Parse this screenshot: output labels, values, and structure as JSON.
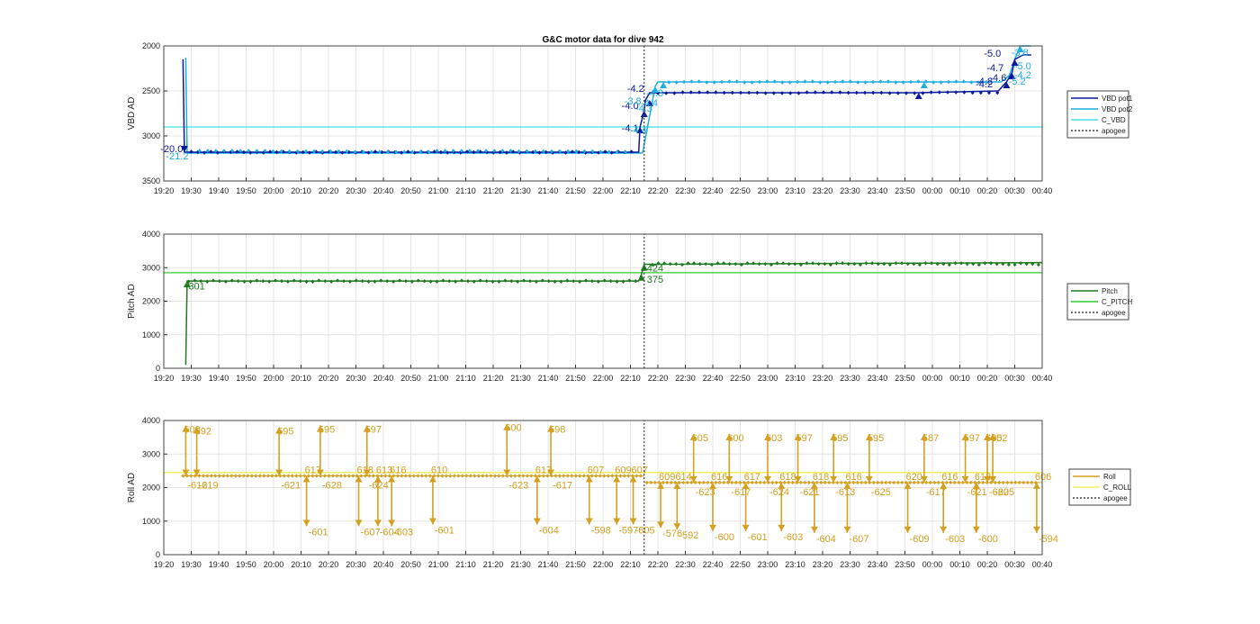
{
  "title": "G&C motor data for dive 942",
  "time_ticks": [
    "19:20",
    "19:30",
    "19:40",
    "19:50",
    "20:00",
    "20:10",
    "20:20",
    "20:30",
    "20:40",
    "20:50",
    "21:00",
    "21:10",
    "21:20",
    "21:30",
    "21:40",
    "21:50",
    "22:00",
    "22:10",
    "22:20",
    "22:30",
    "22:40",
    "22:50",
    "23:00",
    "23:10",
    "23:20",
    "23:30",
    "23:40",
    "23:50",
    "00:00",
    "00:10",
    "00:20",
    "00:30",
    "00:40"
  ],
  "colors": {
    "vbd_pot1": "#0a1a9a",
    "vbd_pot2": "#1faee0",
    "c_vbd": "#40e0e8",
    "pitch": "#1e7a1e",
    "c_pitch": "#33cc33",
    "roll": "#d4a020",
    "c_roll": "#f0f060",
    "apogee": "#444444",
    "grid": "#e4e4e4"
  },
  "chart_data": [
    {
      "type": "line",
      "id": "vbd",
      "title": "G&C motor data for dive 942",
      "ylabel": "VBD AD",
      "ylim": [
        3500,
        2000
      ],
      "y_reversed": true,
      "yticks": [
        2000,
        2500,
        3000,
        3500
      ],
      "xlim": [
        "19:20",
        "00:40"
      ],
      "grid": true,
      "legend_placement": "outside-right",
      "series": [
        {
          "name": "VBD pot1",
          "style": "line",
          "x": [
            "19:27",
            "19:27.5",
            "19:28",
            "22:13",
            "22:13.5",
            "22:15",
            "22:15.5",
            "22:17",
            "22:18",
            "23:55",
            "00:24",
            "00:27",
            "00:29",
            "00:30",
            "00:33",
            "00:36"
          ],
          "values": [
            2150,
            3180,
            3180,
            3180,
            2900,
            2720,
            2600,
            2520,
            2520,
            2520,
            2500,
            2400,
            2300,
            2150,
            2100,
            2100
          ]
        },
        {
          "name": "VBD pot2",
          "style": "line",
          "x": [
            "19:28",
            "19:28.5",
            "19:29",
            "22:14",
            "22:14.5",
            "22:19",
            "22:20",
            "22:22",
            "23:57",
            "00:25",
            "00:28",
            "00:30",
            "00:32",
            "00:36"
          ],
          "values": [
            2130,
            3190,
            3190,
            3190,
            3180,
            2450,
            2400,
            2400,
            2400,
            2400,
            2330,
            2150,
            2000,
            2000
          ]
        },
        {
          "name": "C_VBD",
          "style": "line",
          "x": [
            "19:20",
            "00:40"
          ],
          "values": [
            2900,
            2900
          ]
        },
        {
          "name": "apogee",
          "style": "dotted",
          "x": [
            "22:15",
            "22:15"
          ],
          "values": [
            2000,
            3500
          ]
        }
      ],
      "annotations": [
        {
          "text": "-20.0",
          "x": "19:27",
          "y": 3180,
          "series": "VBD pot1"
        },
        {
          "text": "-21.2",
          "x": "19:29",
          "y": 3260,
          "series": "VBD pot2"
        },
        {
          "text": "-4.1",
          "x": "22:13",
          "y": 2950,
          "series": "VBD pot1"
        },
        {
          "text": "-4.4",
          "x": "22:16",
          "y": 2970,
          "series": "VBD pot2"
        },
        {
          "text": "-4.0",
          "x": "22:13",
          "y": 2700,
          "series": "VBD pot1"
        },
        {
          "text": "-3.8",
          "x": "22:14",
          "y": 2650,
          "series": "VBD pot2"
        },
        {
          "text": "-4.2",
          "x": "22:15",
          "y": 2510,
          "series": "VBD pot1"
        },
        {
          "text": "-4.3",
          "x": "22:18",
          "y": 2730,
          "series": "VBD pot2"
        },
        {
          "text": "-4.4",
          "x": "22:20",
          "y": 2670,
          "series": "VBD pot2"
        },
        {
          "text": "-4.3",
          "x": "22:22",
          "y": 2560,
          "series": "VBD pot2"
        },
        {
          "text": "-5.0",
          "x": "00:25",
          "y": 2120,
          "series": "VBD pot1"
        },
        {
          "text": "-4.7",
          "x": "00:26",
          "y": 2280,
          "series": "VBD pot1"
        },
        {
          "text": "-4.6",
          "x": "00:27",
          "y": 2390,
          "series": "VBD pot1"
        },
        {
          "text": "-4.8",
          "x": "00:22",
          "y": 2430,
          "series": "VBD pot1"
        },
        {
          "text": "-4.2",
          "x": "00:22",
          "y": 2460,
          "series": "VBD pot1"
        },
        {
          "text": "-3.8",
          "x": "00:35",
          "y": 2110,
          "series": "VBD pot2"
        },
        {
          "text": "-5.0",
          "x": "00:36",
          "y": 2260,
          "series": "VBD pot2"
        },
        {
          "text": "-4.2",
          "x": "00:36",
          "y": 2360,
          "series": "VBD pot2"
        },
        {
          "text": "-5.2",
          "x": "00:34",
          "y": 2430,
          "series": "VBD pot2"
        }
      ]
    },
    {
      "type": "line",
      "id": "pitch",
      "ylabel": "Pitch AD",
      "ylim": [
        0,
        4000
      ],
      "yticks": [
        0,
        1000,
        2000,
        3000,
        4000
      ],
      "xlim": [
        "19:20",
        "00:40"
      ],
      "grid": true,
      "legend_placement": "outside-right",
      "series": [
        {
          "name": "Pitch",
          "style": "line",
          "x": [
            "19:28",
            "19:28.5",
            "22:13",
            "22:14",
            "22:15",
            "22:17",
            "00:40"
          ],
          "values": [
            100,
            2600,
            2600,
            2800,
            3100,
            3100,
            3150
          ]
        },
        {
          "name": "C_PITCH",
          "style": "line",
          "x": [
            "19:20",
            "00:40"
          ],
          "values": [
            2850,
            2850
          ]
        },
        {
          "name": "apogee",
          "style": "dotted",
          "x": [
            "22:15",
            "22:15"
          ],
          "values": [
            0,
            4000
          ]
        }
      ],
      "annotations": [
        {
          "text": "301",
          "x": "19:29",
          "y": 2350
        },
        {
          "text": "424",
          "x": "22:16",
          "y": 2880
        },
        {
          "text": "375",
          "x": "22:16",
          "y": 2550
        }
      ]
    },
    {
      "type": "line",
      "id": "roll",
      "ylabel": "Roll AD",
      "ylim": [
        0,
        4000
      ],
      "yticks": [
        0,
        1000,
        2000,
        3000,
        4000
      ],
      "xlim": [
        "19:20",
        "00:40"
      ],
      "grid": true,
      "legend_placement": "outside-right",
      "series": [
        {
          "name": "Roll",
          "style": "line",
          "baseline_pre": 2350,
          "baseline_post": 2150
        },
        {
          "name": "C_ROLL",
          "style": "line",
          "x": [
            "19:20",
            "00:40"
          ],
          "values": [
            2450,
            2450
          ]
        },
        {
          "name": "apogee",
          "style": "dotted",
          "x": [
            "22:15",
            "22:15"
          ],
          "values": [
            0,
            4000
          ]
        }
      ],
      "roll_moves": [
        {
          "x": "19:28",
          "peak": 3850,
          "up_label": "600",
          "down_label": "-612"
        },
        {
          "x": "19:32",
          "peak": 3800,
          "up_label": "592",
          "down_label": "-619"
        },
        {
          "x": "20:02",
          "peak": 3800,
          "up_label": "595",
          "down_label": "-621"
        },
        {
          "x": "20:12",
          "peak": 850,
          "up_label": "617",
          "down_label": "-601"
        },
        {
          "x": "20:17",
          "peak": 3850,
          "up_label": "595",
          "down_label": "-628"
        },
        {
          "x": "20:31",
          "peak": 850,
          "up_label": "618",
          "down_label": "-607"
        },
        {
          "x": "20:34",
          "peak": 3850,
          "up_label": "597",
          "down_label": "-624"
        },
        {
          "x": "20:38",
          "peak": 850,
          "up_label": "613",
          "down_label": "-604"
        },
        {
          "x": "20:43",
          "peak": 850,
          "up_label": "616",
          "down_label": "-603"
        },
        {
          "x": "20:58",
          "peak": 900,
          "up_label": "610",
          "down_label": "-601"
        },
        {
          "x": "21:25",
          "peak": 3900,
          "up_label": "600",
          "down_label": "-623"
        },
        {
          "x": "21:36",
          "peak": 900,
          "up_label": "617",
          "down_label": "-604"
        },
        {
          "x": "21:41",
          "peak": 3850,
          "up_label": "598",
          "down_label": "-617"
        },
        {
          "x": "21:55",
          "peak": 900,
          "up_label": "607",
          "down_label": "-598"
        },
        {
          "x": "22:05",
          "peak": 900,
          "up_label": "609",
          "down_label": "-597"
        },
        {
          "x": "22:11",
          "peak": 900,
          "up_label": "607",
          "down_label": "-605"
        },
        {
          "x": "22:21",
          "peak": 800,
          "up_label": "609",
          "down_label": "-576"
        },
        {
          "x": "22:27",
          "peak": 750,
          "up_label": "614",
          "down_label": "-592"
        },
        {
          "x": "22:33",
          "peak": 3600,
          "up_label": "605",
          "down_label": "-623"
        },
        {
          "x": "22:40",
          "peak": 700,
          "up_label": "616",
          "down_label": "-600"
        },
        {
          "x": "22:46",
          "peak": 3600,
          "up_label": "600",
          "down_label": "-617"
        },
        {
          "x": "22:52",
          "peak": 700,
          "up_label": "617",
          "down_label": "-601"
        },
        {
          "x": "23:00",
          "peak": 3600,
          "up_label": "603",
          "down_label": "-624"
        },
        {
          "x": "23:05",
          "peak": 700,
          "up_label": "618",
          "down_label": "-603"
        },
        {
          "x": "23:11",
          "peak": 3600,
          "up_label": "597",
          "down_label": "-621"
        },
        {
          "x": "23:17",
          "peak": 650,
          "up_label": "618",
          "down_label": "-604"
        },
        {
          "x": "23:24",
          "peak": 3600,
          "up_label": "595",
          "down_label": "-613"
        },
        {
          "x": "23:29",
          "peak": 650,
          "up_label": "616",
          "down_label": "-607"
        },
        {
          "x": "23:37",
          "peak": 3600,
          "up_label": "595",
          "down_label": "-625"
        },
        {
          "x": "23:51",
          "peak": 650,
          "up_label": "620",
          "down_label": "-609"
        },
        {
          "x": "23:57",
          "peak": 3600,
          "up_label": "587",
          "down_label": "-617"
        },
        {
          "x": "00:04",
          "peak": 650,
          "up_label": "616",
          "down_label": "-603"
        },
        {
          "x": "00:12",
          "peak": 3600,
          "up_label": "597",
          "down_label": "-621"
        },
        {
          "x": "00:16",
          "peak": 650,
          "up_label": "618",
          "down_label": "-600"
        },
        {
          "x": "00:20",
          "peak": 3600,
          "up_label": "605",
          "down_label": "-620"
        },
        {
          "x": "00:22",
          "peak": 3600,
          "up_label": "602",
          "down_label": "-625"
        },
        {
          "x": "00:38",
          "peak": 650,
          "up_label": "606",
          "down_label": "-594"
        }
      ]
    }
  ],
  "legends": [
    {
      "items": [
        {
          "label": "VBD pot1",
          "color": "#0a1a9a",
          "dash": false
        },
        {
          "label": "VBD pot2",
          "color": "#1faee0",
          "dash": false
        },
        {
          "label": "C_VBD",
          "color": "#40e0e8",
          "dash": false
        },
        {
          "label": "apogee",
          "color": "#444444",
          "dash": true
        }
      ]
    },
    {
      "items": [
        {
          "label": "Pitch",
          "color": "#1e7a1e",
          "dash": false
        },
        {
          "label": "C_PITCH",
          "color": "#33cc33",
          "dash": false
        },
        {
          "label": "apogee",
          "color": "#444444",
          "dash": true
        }
      ]
    },
    {
      "items": [
        {
          "label": "Roll",
          "color": "#d4a020",
          "dash": false
        },
        {
          "label": "C_ROLL",
          "color": "#f0f060",
          "dash": false
        },
        {
          "label": "apogee",
          "color": "#444444",
          "dash": true
        }
      ]
    }
  ]
}
